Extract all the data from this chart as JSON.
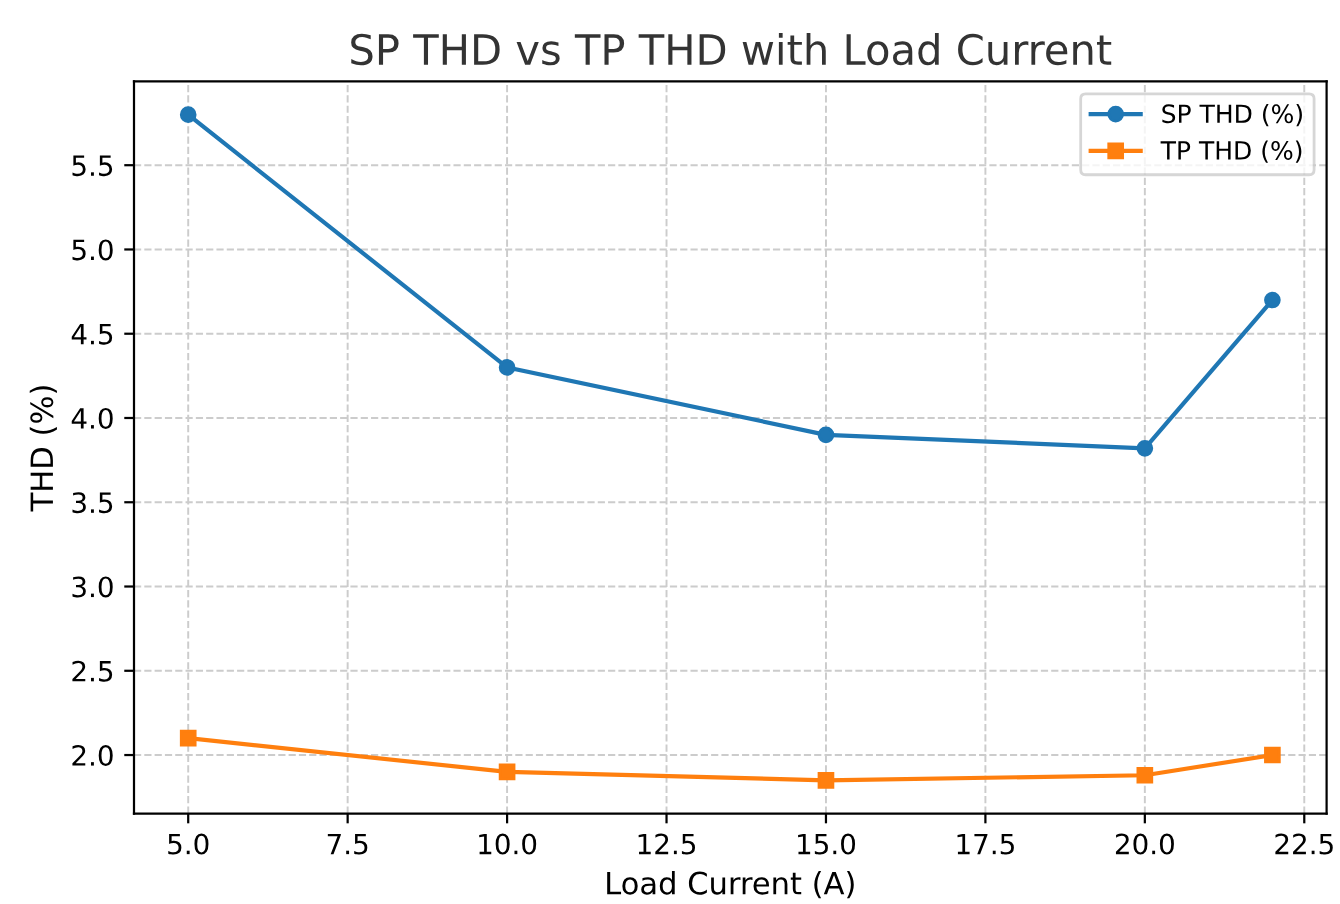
{
  "chart_data": {
    "type": "line",
    "title": "SP THD vs TP THD with Load Current",
    "xlabel": "Load Current (A)",
    "ylabel": "THD (%)",
    "x": [
      5,
      10,
      15,
      20,
      22
    ],
    "series": [
      {
        "name": "SP THD (%)",
        "color": "#1f77b4",
        "marker": "circle",
        "values": [
          5.8,
          4.3,
          3.9,
          3.82,
          4.7
        ]
      },
      {
        "name": "TP THD (%)",
        "color": "#ff7f0e",
        "marker": "square",
        "values": [
          2.1,
          1.9,
          1.85,
          1.88,
          2.0
        ]
      }
    ],
    "xlim": [
      4.15,
      22.85
    ],
    "xticks": [
      {
        "value": 5,
        "label": "5.0"
      },
      7.5,
      {
        "value": 10,
        "label": "10.0"
      },
      12.5,
      {
        "value": 15,
        "label": "15.0"
      },
      17.5,
      {
        "value": 20,
        "label": "20.0"
      },
      22.5
    ],
    "ylim": [
      1.6525,
      5.9975
    ],
    "yticks": [
      {
        "value": 2,
        "label": "2.0"
      },
      2.5,
      {
        "value": 3,
        "label": "3.0"
      },
      3.5,
      {
        "value": 4,
        "label": "4.0"
      },
      4.5,
      {
        "value": 5,
        "label": "5.0"
      },
      5.5
    ],
    "grid": true,
    "legend": "top right",
    "line_style": "solid"
  }
}
